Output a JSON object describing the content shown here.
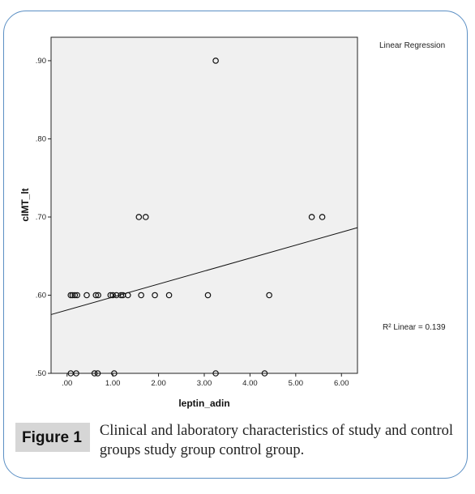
{
  "figure": {
    "label": "Figure 1",
    "caption": "Clinical and laboratory characteristics of study and control groups study group control group."
  },
  "chart_data": {
    "type": "scatter",
    "title": "",
    "xlabel": "leptin_adin",
    "ylabel": "cIMT_lt",
    "xlim": [
      -0.35,
      6.35
    ],
    "ylim": [
      0.5,
      0.93
    ],
    "x_ticks": [
      0,
      1,
      2,
      3,
      4,
      5,
      6
    ],
    "x_tick_labels": [
      ".00",
      "1.00",
      "2.00",
      "3.00",
      "4.00",
      "5.00",
      "6.00"
    ],
    "y_ticks": [
      0.5,
      0.6,
      0.7,
      0.8,
      0.9
    ],
    "y_tick_labels": [
      ".50",
      ".60",
      ".70",
      ".80",
      ".90"
    ],
    "grid": false,
    "legend_title": "Linear Regression",
    "fit_annotation": "R² Linear = 0.139",
    "fit_line": {
      "intercept": 0.581,
      "slope": 0.0166
    },
    "points": [
      {
        "x": 0.08,
        "y": 0.6
      },
      {
        "x": 0.12,
        "y": 0.6
      },
      {
        "x": 0.17,
        "y": 0.6
      },
      {
        "x": 0.22,
        "y": 0.6
      },
      {
        "x": 0.43,
        "y": 0.6
      },
      {
        "x": 0.63,
        "y": 0.6
      },
      {
        "x": 0.68,
        "y": 0.6
      },
      {
        "x": 0.95,
        "y": 0.6
      },
      {
        "x": 1.0,
        "y": 0.6
      },
      {
        "x": 1.08,
        "y": 0.6
      },
      {
        "x": 1.18,
        "y": 0.6
      },
      {
        "x": 1.22,
        "y": 0.6
      },
      {
        "x": 1.33,
        "y": 0.6
      },
      {
        "x": 1.62,
        "y": 0.6
      },
      {
        "x": 1.92,
        "y": 0.6
      },
      {
        "x": 2.23,
        "y": 0.6
      },
      {
        "x": 3.08,
        "y": 0.6
      },
      {
        "x": 4.42,
        "y": 0.6
      },
      {
        "x": 1.57,
        "y": 0.7
      },
      {
        "x": 1.72,
        "y": 0.7
      },
      {
        "x": 5.35,
        "y": 0.7
      },
      {
        "x": 5.58,
        "y": 0.7
      },
      {
        "x": 3.25,
        "y": 0.9
      },
      {
        "x": 0.08,
        "y": 0.5
      },
      {
        "x": 0.2,
        "y": 0.5
      },
      {
        "x": 0.6,
        "y": 0.5
      },
      {
        "x": 0.67,
        "y": 0.5
      },
      {
        "x": 1.03,
        "y": 0.5
      },
      {
        "x": 3.25,
        "y": 0.5
      },
      {
        "x": 4.32,
        "y": 0.5
      }
    ]
  }
}
